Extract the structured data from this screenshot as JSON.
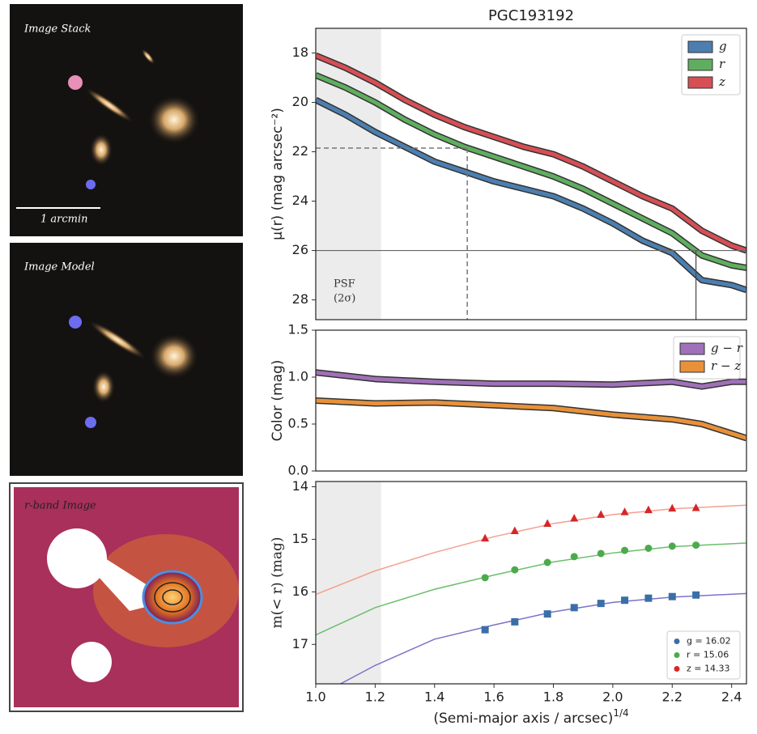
{
  "images": [
    {
      "label": "Image Stack",
      "scale_bar": "1 arcmin"
    },
    {
      "label": "Image Model"
    },
    {
      "label": "r-band Image"
    }
  ],
  "chart_data": [
    {
      "type": "band-line",
      "title": "PGC193192",
      "ylabel": "μ(r) (mag arcsec⁻²)",
      "xlim": [
        1.0,
        2.45
      ],
      "ylim": [
        17,
        28.8
      ],
      "y_inverted": true,
      "yticks": [
        18,
        20,
        22,
        24,
        26,
        28
      ],
      "shaded_xlim": [
        1.0,
        1.22
      ],
      "psf_label": [
        "PSF",
        "(2σ)"
      ],
      "half_light": {
        "x": 1.51,
        "y": 21.85
      },
      "limit": {
        "x": 2.28,
        "y": 26
      },
      "legend": "upper right",
      "x": [
        1.0,
        1.1,
        1.2,
        1.3,
        1.4,
        1.5,
        1.6,
        1.7,
        1.8,
        1.9,
        2.0,
        2.1,
        2.2,
        2.3,
        2.4,
        2.45
      ],
      "series": [
        {
          "name": "g",
          "color": "#4c7fb0",
          "values": [
            19.9,
            20.5,
            21.2,
            21.8,
            22.4,
            22.8,
            23.2,
            23.5,
            23.8,
            24.3,
            24.9,
            25.6,
            26.1,
            27.2,
            27.4,
            27.6
          ]
        },
        {
          "name": "r",
          "color": "#5fae5f",
          "values": [
            18.9,
            19.4,
            20.0,
            20.7,
            21.3,
            21.8,
            22.2,
            22.6,
            23.0,
            23.5,
            24.1,
            24.7,
            25.3,
            26.2,
            26.6,
            26.7
          ]
        },
        {
          "name": "z",
          "color": "#d64f55",
          "values": [
            18.1,
            18.6,
            19.2,
            19.9,
            20.5,
            21.0,
            21.4,
            21.8,
            22.1,
            22.6,
            23.2,
            23.8,
            24.3,
            25.2,
            25.8,
            26.0
          ]
        }
      ]
    },
    {
      "type": "band-line",
      "ylabel": "Color (mag)",
      "xlim": [
        1.0,
        2.45
      ],
      "ylim": [
        0,
        1.5
      ],
      "yticks": [
        {
          "value": 0,
          "label": "0.0"
        },
        {
          "value": 0.5,
          "label": "0.5"
        },
        {
          "value": 1,
          "label": "1.0"
        },
        {
          "value": 1.5,
          "label": "1.5"
        }
      ],
      "legend": "upper right",
      "x": [
        1.0,
        1.2,
        1.4,
        1.6,
        1.8,
        2.0,
        2.2,
        2.3,
        2.4,
        2.45
      ],
      "series": [
        {
          "name": "g − r",
          "color": "#a070b8",
          "values": [
            1.05,
            0.98,
            0.95,
            0.93,
            0.93,
            0.92,
            0.95,
            0.9,
            0.95,
            0.95
          ]
        },
        {
          "name": "r − z",
          "color": "#e8913a",
          "values": [
            0.75,
            0.72,
            0.73,
            0.7,
            0.67,
            0.6,
            0.55,
            0.5,
            0.4,
            0.35
          ]
        }
      ]
    },
    {
      "type": "scatter-fit",
      "ylabel": "m(< r) (mag)",
      "xlabel": "(Semi-major axis / arcsec)",
      "xlabel_exponent": "1/4",
      "xlim": [
        1.0,
        2.45
      ],
      "ylim": [
        13.9,
        17.75
      ],
      "y_inverted": true,
      "yticks": [
        14,
        15,
        16,
        17
      ],
      "xticks": [
        {
          "value": 1.0,
          "label": "1.0"
        },
        {
          "value": 1.2,
          "label": "1.2"
        },
        {
          "value": 1.4,
          "label": "1.4"
        },
        {
          "value": 1.6,
          "label": "1.6"
        },
        {
          "value": 1.8,
          "label": "1.8"
        },
        {
          "value": 2.0,
          "label": "2.0"
        },
        {
          "value": 2.2,
          "label": "2.2"
        },
        {
          "value": 2.4,
          "label": "2.4"
        }
      ],
      "shaded_xlim": [
        1.0,
        1.22
      ],
      "legend": "lower right",
      "x": [
        1.57,
        1.67,
        1.78,
        1.87,
        1.96,
        2.04,
        2.12,
        2.2,
        2.28
      ],
      "fit_x": [
        1.0,
        1.2,
        1.4,
        1.6,
        1.8,
        2.0,
        2.2,
        2.45
      ],
      "series": [
        {
          "name": "g = 16.02",
          "color": "#3a6ea8",
          "marker": "square",
          "values": [
            16.72,
            16.57,
            16.42,
            16.3,
            16.22,
            16.16,
            16.12,
            16.09,
            16.06
          ],
          "fit_color": "#7b73c8",
          "fit_values": [
            18.0,
            17.4,
            16.9,
            16.63,
            16.38,
            16.2,
            16.1,
            16.03
          ]
        },
        {
          "name": "r = 15.06",
          "color": "#4caa4c",
          "marker": "circle",
          "values": [
            15.73,
            15.58,
            15.44,
            15.33,
            15.27,
            15.21,
            15.17,
            15.13,
            15.11
          ],
          "fit_color": "#6abf6a",
          "fit_values": [
            16.82,
            16.3,
            15.95,
            15.68,
            15.43,
            15.26,
            15.14,
            15.07
          ]
        },
        {
          "name": "z = 14.33",
          "color": "#d62728",
          "marker": "triangle",
          "values": [
            14.98,
            14.84,
            14.7,
            14.6,
            14.53,
            14.48,
            14.44,
            14.41,
            14.4
          ],
          "fit_color": "#f4a090",
          "fit_values": [
            16.05,
            15.6,
            15.25,
            14.95,
            14.7,
            14.53,
            14.42,
            14.35
          ]
        }
      ]
    }
  ]
}
